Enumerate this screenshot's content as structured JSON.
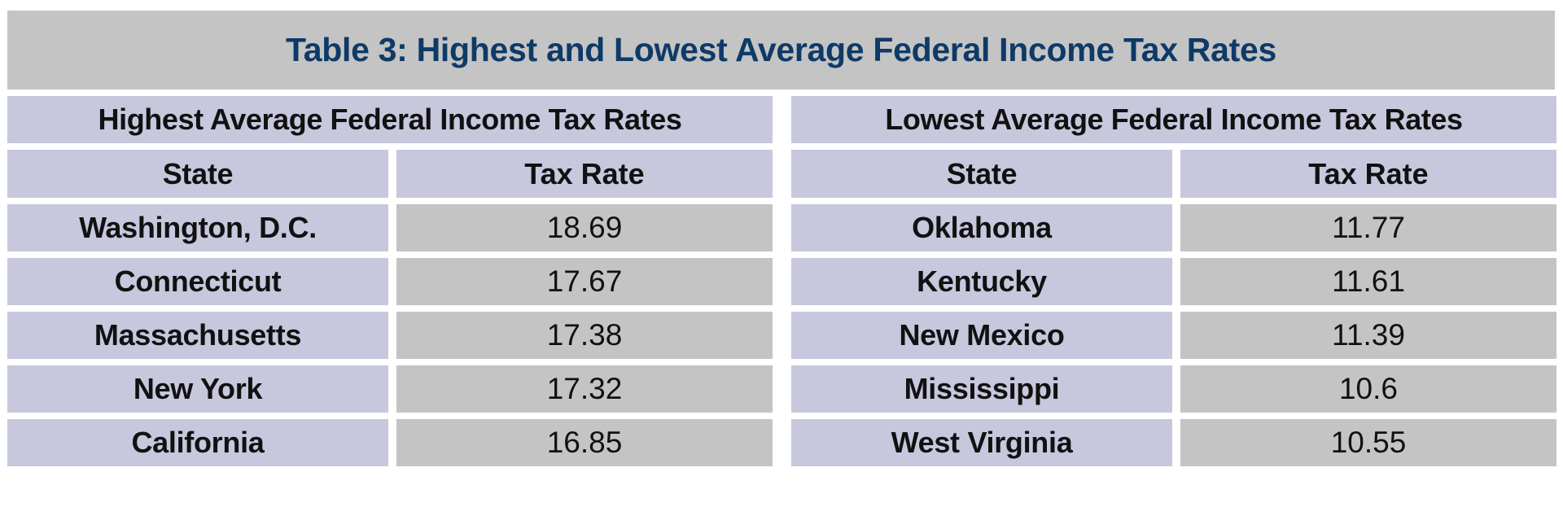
{
  "title": "Table 3: Highest and Lowest Average Federal Income Tax Rates",
  "tables": [
    {
      "heading": "Highest Average Federal Income Tax Rates",
      "columns": [
        "State",
        "Tax Rate"
      ],
      "rows": [
        {
          "state": "Washington, D.C.",
          "rate": "18.69"
        },
        {
          "state": "Connecticut",
          "rate": "17.67"
        },
        {
          "state": "Massachusetts",
          "rate": "17.38"
        },
        {
          "state": "New York",
          "rate": "17.32"
        },
        {
          "state": "California",
          "rate": "16.85"
        }
      ]
    },
    {
      "heading": "Lowest Average Federal Income Tax Rates",
      "columns": [
        "State",
        "Tax Rate"
      ],
      "rows": [
        {
          "state": "Oklahoma",
          "rate": "11.77"
        },
        {
          "state": "Kentucky",
          "rate": "11.61"
        },
        {
          "state": "New Mexico",
          "rate": "11.39"
        },
        {
          "state": "Mississippi",
          "rate": "10.6"
        },
        {
          "state": "West Virginia",
          "rate": "10.55"
        }
      ]
    }
  ],
  "colors": {
    "title_text": "#0e3a67",
    "title_background": "#c4c4c4",
    "label_background": "#c7c7dd",
    "value_background": "#c4c4c4"
  }
}
